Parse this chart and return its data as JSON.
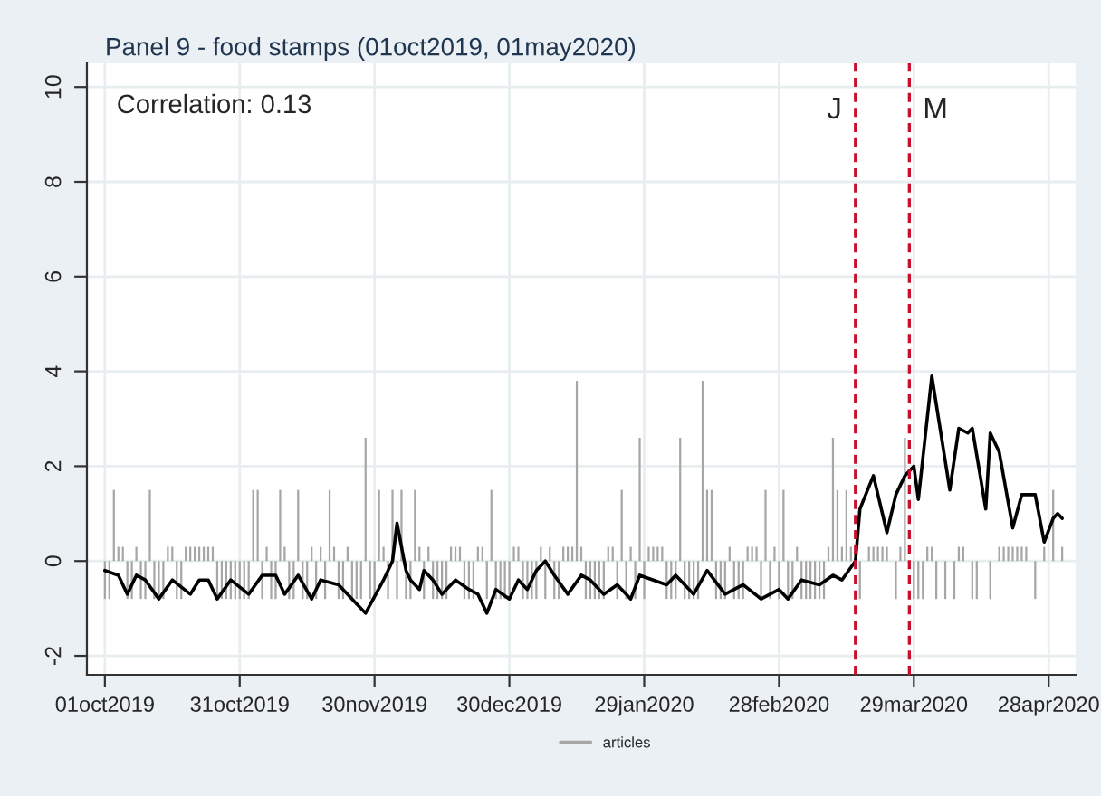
{
  "chart_data": {
    "type": "line",
    "title": "Panel 9 - food stamps (01oct2019, 01may2020)",
    "annotations": [
      "Correlation: 0.13"
    ],
    "xlim": [
      "2019-09-27",
      "2020-05-04"
    ],
    "ylim": [
      -2.4,
      10.5
    ],
    "xticks": [
      {
        "value": "2019-10-01",
        "label": "01oct2019"
      },
      {
        "value": "2019-10-31",
        "label": "31oct2019"
      },
      {
        "value": "2019-11-30",
        "label": "30nov2019"
      },
      {
        "value": "2019-12-30",
        "label": "30dec2019"
      },
      {
        "value": "2020-01-29",
        "label": "29jan2020"
      },
      {
        "value": "2020-02-28",
        "label": "28feb2020"
      },
      {
        "value": "2020-03-29",
        "label": "29mar2020"
      },
      {
        "value": "2020-04-28",
        "label": "28apr2020"
      }
    ],
    "yticks": [
      -2,
      0,
      2,
      4,
      6,
      8,
      10
    ],
    "grid": true,
    "legend": "bottom",
    "ref_lines": [
      {
        "axis": "x",
        "value": "2020-03-16",
        "label": "J",
        "color": "#c8102e",
        "line_style": "dashed"
      },
      {
        "axis": "x",
        "value": "2020-03-28",
        "label": "M",
        "color": "#c8102e",
        "line_style": "dashed"
      }
    ],
    "series": [
      {
        "color": "#000000",
        "x": [
          "2019-10-01",
          "2019-10-04",
          "2019-10-06",
          "2019-10-08",
          "2019-10-10",
          "2019-10-13",
          "2019-10-16",
          "2019-10-20",
          "2019-10-22",
          "2019-10-24",
          "2019-10-26",
          "2019-10-29",
          "2019-11-02",
          "2019-11-05",
          "2019-11-08",
          "2019-11-10",
          "2019-11-13",
          "2019-11-16",
          "2019-11-18",
          "2019-11-22",
          "2019-11-26",
          "2019-11-28",
          "2019-12-02",
          "2019-12-04",
          "2019-12-05",
          "2019-12-07",
          "2019-12-08",
          "2019-12-10",
          "2019-12-11",
          "2019-12-13",
          "2019-12-15",
          "2019-12-18",
          "2019-12-21",
          "2019-12-23",
          "2019-12-25",
          "2019-12-27",
          "2019-12-30",
          "2020-01-01",
          "2020-01-03",
          "2020-01-05",
          "2020-01-07",
          "2020-01-09",
          "2020-01-12",
          "2020-01-15",
          "2020-01-17",
          "2020-01-20",
          "2020-01-23",
          "2020-01-26",
          "2020-01-28",
          "2020-01-31",
          "2020-02-03",
          "2020-02-05",
          "2020-02-09",
          "2020-02-12",
          "2020-02-16",
          "2020-02-20",
          "2020-02-24",
          "2020-02-28",
          "2020-03-01",
          "2020-03-04",
          "2020-03-08",
          "2020-03-11",
          "2020-03-13",
          "2020-03-16",
          "2020-03-17",
          "2020-03-20",
          "2020-03-23",
          "2020-03-25",
          "2020-03-27",
          "2020-03-29",
          "2020-03-30",
          "2020-04-02",
          "2020-04-06",
          "2020-04-08",
          "2020-04-10",
          "2020-04-11",
          "2020-04-14",
          "2020-04-15",
          "2020-04-17",
          "2020-04-20",
          "2020-04-22",
          "2020-04-25",
          "2020-04-27",
          "2020-04-29",
          "2020-04-30",
          "2020-05-01"
        ],
        "values": [
          -0.2,
          -0.3,
          -0.7,
          -0.3,
          -0.4,
          -0.8,
          -0.4,
          -0.7,
          -0.4,
          -0.4,
          -0.8,
          -0.4,
          -0.7,
          -0.3,
          -0.3,
          -0.7,
          -0.3,
          -0.8,
          -0.4,
          -0.5,
          -0.9,
          -1.1,
          -0.4,
          0.0,
          0.8,
          -0.2,
          -0.4,
          -0.6,
          -0.2,
          -0.4,
          -0.7,
          -0.4,
          -0.6,
          -0.7,
          -1.1,
          -0.6,
          -0.8,
          -0.4,
          -0.6,
          -0.2,
          0.0,
          -0.3,
          -0.7,
          -0.3,
          -0.4,
          -0.7,
          -0.5,
          -0.8,
          -0.3,
          -0.4,
          -0.5,
          -0.3,
          -0.7,
          -0.2,
          -0.7,
          -0.5,
          -0.8,
          -0.6,
          -0.8,
          -0.4,
          -0.5,
          -0.3,
          -0.4,
          0.0,
          1.1,
          1.8,
          0.6,
          1.4,
          1.8,
          2.0,
          1.3,
          3.9,
          1.5,
          2.8,
          2.7,
          2.8,
          1.1,
          2.7,
          2.3,
          0.7,
          1.4,
          1.4,
          0.4,
          0.9,
          1.0,
          0.9
        ]
      },
      {
        "type": "bar",
        "name": "articles",
        "color": "#a6a6a6",
        "x": [
          "2019-10-01",
          "2019-10-02",
          "2019-10-03",
          "2019-10-04",
          "2019-10-05",
          "2019-10-06",
          "2019-10-07",
          "2019-10-08",
          "2019-10-09",
          "2019-10-10",
          "2019-10-11",
          "2019-10-12",
          "2019-10-13",
          "2019-10-14",
          "2019-10-15",
          "2019-10-16",
          "2019-10-17",
          "2019-10-18",
          "2019-10-19",
          "2019-10-20",
          "2019-10-21",
          "2019-10-22",
          "2019-10-23",
          "2019-10-24",
          "2019-10-25",
          "2019-10-26",
          "2019-10-27",
          "2019-10-28",
          "2019-10-29",
          "2019-10-30",
          "2019-10-31",
          "2019-11-01",
          "2019-11-02",
          "2019-11-03",
          "2019-11-04",
          "2019-11-05",
          "2019-11-06",
          "2019-11-07",
          "2019-11-08",
          "2019-11-09",
          "2019-11-10",
          "2019-11-11",
          "2019-11-12",
          "2019-11-13",
          "2019-11-14",
          "2019-11-15",
          "2019-11-16",
          "2019-11-17",
          "2019-11-18",
          "2019-11-19",
          "2019-11-20",
          "2019-11-21",
          "2019-11-22",
          "2019-11-23",
          "2019-11-24",
          "2019-11-25",
          "2019-11-26",
          "2019-11-27",
          "2019-11-28",
          "2019-11-29",
          "2019-11-30",
          "2019-12-01",
          "2019-12-02",
          "2019-12-03",
          "2019-12-04",
          "2019-12-05",
          "2019-12-06",
          "2019-12-07",
          "2019-12-08",
          "2019-12-09",
          "2019-12-10",
          "2019-12-11",
          "2019-12-12",
          "2019-12-13",
          "2019-12-14",
          "2019-12-15",
          "2019-12-16",
          "2019-12-17",
          "2019-12-18",
          "2019-12-19",
          "2019-12-20",
          "2019-12-21",
          "2019-12-22",
          "2019-12-23",
          "2019-12-24",
          "2019-12-25",
          "2019-12-26",
          "2019-12-27",
          "2019-12-28",
          "2019-12-29",
          "2019-12-30",
          "2019-12-31",
          "2020-01-01",
          "2020-01-02",
          "2020-01-03",
          "2020-01-04",
          "2020-01-05",
          "2020-01-06",
          "2020-01-07",
          "2020-01-08",
          "2020-01-09",
          "2020-01-10",
          "2020-01-11",
          "2020-01-12",
          "2020-01-13",
          "2020-01-14",
          "2020-01-15",
          "2020-01-16",
          "2020-01-17",
          "2020-01-18",
          "2020-01-19",
          "2020-01-20",
          "2020-01-21",
          "2020-01-22",
          "2020-01-23",
          "2020-01-24",
          "2020-01-25",
          "2020-01-26",
          "2020-01-27",
          "2020-01-28",
          "2020-01-29",
          "2020-01-30",
          "2020-01-31",
          "2020-02-01",
          "2020-02-02",
          "2020-02-03",
          "2020-02-04",
          "2020-02-05",
          "2020-02-06",
          "2020-02-07",
          "2020-02-08",
          "2020-02-09",
          "2020-02-10",
          "2020-02-11",
          "2020-02-12",
          "2020-02-13",
          "2020-02-14",
          "2020-02-15",
          "2020-02-16",
          "2020-02-17",
          "2020-02-18",
          "2020-02-19",
          "2020-02-20",
          "2020-02-21",
          "2020-02-22",
          "2020-02-23",
          "2020-02-24",
          "2020-02-25",
          "2020-02-26",
          "2020-02-27",
          "2020-02-28",
          "2020-02-29",
          "2020-03-01",
          "2020-03-02",
          "2020-03-03",
          "2020-03-04",
          "2020-03-05",
          "2020-03-06",
          "2020-03-07",
          "2020-03-08",
          "2020-03-09",
          "2020-03-10",
          "2020-03-11",
          "2020-03-12",
          "2020-03-13",
          "2020-03-14",
          "2020-03-15",
          "2020-03-16",
          "2020-03-17",
          "2020-03-18",
          "2020-03-19",
          "2020-03-20",
          "2020-03-21",
          "2020-03-22",
          "2020-03-23",
          "2020-03-24",
          "2020-03-25",
          "2020-03-26",
          "2020-03-27",
          "2020-03-28",
          "2020-03-29",
          "2020-03-30",
          "2020-03-31",
          "2020-04-01",
          "2020-04-02",
          "2020-04-03",
          "2020-04-04",
          "2020-04-05",
          "2020-04-06",
          "2020-04-07",
          "2020-04-08",
          "2020-04-09",
          "2020-04-10",
          "2020-04-11",
          "2020-04-12",
          "2020-04-13",
          "2020-04-14",
          "2020-04-15",
          "2020-04-16",
          "2020-04-17",
          "2020-04-18",
          "2020-04-19",
          "2020-04-20",
          "2020-04-21",
          "2020-04-22",
          "2020-04-23",
          "2020-04-24",
          "2020-04-25",
          "2020-04-26",
          "2020-04-27",
          "2020-04-28",
          "2020-04-29",
          "2020-04-30",
          "2020-05-01"
        ],
        "values": [
          -0.8,
          -0.8,
          1.5,
          0.3,
          0.3,
          -0.8,
          -0.8,
          0.3,
          -0.8,
          -0.8,
          1.5,
          -0.8,
          -0.8,
          -0.8,
          0.3,
          0.3,
          -0.8,
          -0.8,
          0.3,
          0.3,
          0.3,
          0.3,
          0.3,
          0.3,
          0.3,
          -0.8,
          -0.8,
          -0.8,
          -0.8,
          -0.8,
          -0.8,
          -0.8,
          -0.8,
          1.5,
          1.5,
          -0.8,
          0.3,
          -0.8,
          -0.8,
          1.5,
          0.3,
          -0.8,
          -0.8,
          1.5,
          -0.8,
          -0.8,
          0.3,
          -0.8,
          0.3,
          -0.8,
          1.5,
          0.3,
          -0.8,
          -0.8,
          0.3,
          -0.8,
          -0.8,
          -0.8,
          2.6,
          -0.8,
          -0.8,
          1.5,
          0.3,
          -0.8,
          1.5,
          -0.8,
          1.5,
          -0.8,
          -0.8,
          1.5,
          0.3,
          -0.8,
          0.3,
          -0.8,
          -0.8,
          -0.8,
          -0.8,
          0.3,
          0.3,
          0.3,
          -0.8,
          -0.8,
          -0.8,
          0.3,
          0.3,
          -0.8,
          1.5,
          -0.8,
          -0.8,
          -0.8,
          -0.8,
          0.3,
          0.3,
          -0.8,
          -0.8,
          -0.8,
          -0.8,
          0.3,
          -0.8,
          0.3,
          -0.8,
          -0.8,
          0.3,
          0.3,
          0.3,
          3.8,
          0.3,
          -0.8,
          -0.8,
          -0.8,
          -0.8,
          -0.8,
          0.3,
          0.3,
          -0.8,
          1.5,
          -0.8,
          0.3,
          -0.8,
          2.6,
          -0.8,
          0.3,
          0.3,
          0.3,
          0.3,
          -0.8,
          -0.8,
          -0.8,
          2.6,
          -0.8,
          -0.8,
          -0.8,
          -0.8,
          3.8,
          1.5,
          1.5,
          -0.8,
          -0.8,
          -0.8,
          0.3,
          -0.8,
          -0.8,
          -0.8,
          0.3,
          0.3,
          0.3,
          -0.8,
          1.5,
          -0.8,
          0.3,
          -0.8,
          1.5,
          -0.8,
          -0.8,
          0.3,
          -0.8,
          -0.8,
          -0.8,
          -0.8,
          -0.8,
          -0.8,
          0.3,
          2.6,
          1.5,
          0.3,
          1.5,
          0.3,
          null,
          -0.8,
          null,
          0.3,
          0.3,
          0.3,
          0.3,
          0.3,
          null,
          -0.8,
          0.3,
          2.6,
          null,
          -0.8,
          -0.8,
          -0.8,
          0.3,
          0.3,
          -0.8,
          null,
          -0.8,
          null,
          -0.8,
          0.3,
          0.3,
          null,
          -0.8,
          -0.8,
          null,
          null,
          -0.8,
          null,
          0.3,
          0.3,
          0.3,
          0.3,
          0.3,
          0.3,
          0.3,
          null,
          -0.8,
          null,
          0.3,
          null,
          1.5,
          null,
          0.3
        ]
      }
    ]
  }
}
